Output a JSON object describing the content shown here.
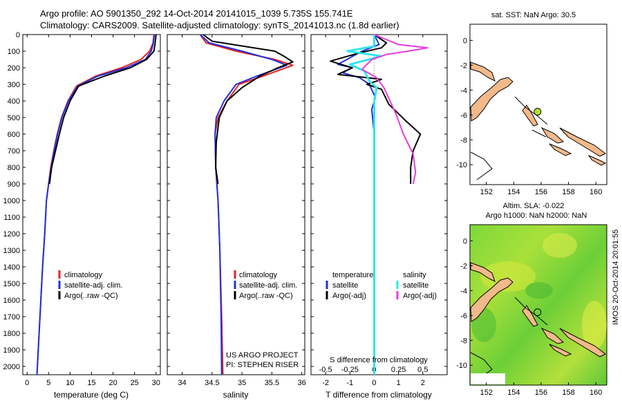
{
  "header": {
    "line1": "Argo profile: AO 5901350_292 14-Oct-2014 20141015_1039 5.735S 155.741E",
    "line2": "Climatology: CARS2009. Satellite-adjusted climatology: synTS_20141013.nc (1.8d earlier)"
  },
  "side_text": "IMOS 20-Oct-2014 20:01:55",
  "colors": {
    "clim": "#e8211d",
    "sat": "#1f2fe0",
    "argo": "#000000",
    "sal_sat": "#2ee6ee",
    "sal_argo": "#e83ae0",
    "land": "#f2b98a",
    "argo_dot": "#b8e02a"
  },
  "chart_data": [
    {
      "type": "line",
      "id": "temperature",
      "xlabel": "temperature (deg C)",
      "xlim": [
        -1,
        31
      ],
      "ylim": [
        0,
        2050
      ],
      "xticks": [
        0,
        5,
        10,
        15,
        20,
        25,
        30
      ],
      "yticks": [
        0,
        100,
        200,
        300,
        400,
        500,
        600,
        700,
        800,
        900,
        1000,
        1100,
        1200,
        1300,
        1400,
        1500,
        1600,
        1700,
        1800,
        1900,
        2000
      ],
      "legend": [
        "climatology",
        "satellite-adj. clim.",
        "Argo(..raw -QC)"
      ],
      "series": [
        {
          "name": "climatology",
          "points": [
            [
              29.5,
              0
            ],
            [
              29.3,
              50
            ],
            [
              28.5,
              100
            ],
            [
              26.5,
              150
            ],
            [
              22,
              200
            ],
            [
              16,
              250
            ],
            [
              11.5,
              310
            ],
            [
              9.5,
              400
            ],
            [
              8,
              500
            ],
            [
              7,
              600
            ],
            [
              6.2,
              700
            ],
            [
              5.5,
              800
            ],
            [
              5,
              900
            ],
            [
              4.5,
              1000
            ],
            [
              4.1,
              1200
            ],
            [
              3.6,
              1400
            ],
            [
              3.2,
              1600
            ],
            [
              2.8,
              1800
            ],
            [
              2.4,
              2000
            ],
            [
              2.3,
              2050
            ]
          ]
        },
        {
          "name": "satellite-adj. clim.",
          "points": [
            [
              29.6,
              0
            ],
            [
              29.4,
              50
            ],
            [
              28.9,
              100
            ],
            [
              27.5,
              150
            ],
            [
              23,
              200
            ],
            [
              16.5,
              250
            ],
            [
              11.8,
              310
            ],
            [
              9.6,
              400
            ],
            [
              8.1,
              500
            ],
            [
              7.1,
              600
            ],
            [
              6.3,
              700
            ],
            [
              5.6,
              800
            ],
            [
              5,
              900
            ],
            [
              4.5,
              1000
            ],
            [
              4.1,
              1200
            ],
            [
              3.6,
              1400
            ],
            [
              3.2,
              1600
            ],
            [
              2.8,
              1800
            ],
            [
              2.4,
              2000
            ],
            [
              2.3,
              2050
            ]
          ]
        },
        {
          "name": "Argo(..raw -QC)",
          "points": [
            [
              30,
              0
            ],
            [
              29.8,
              50
            ],
            [
              29.5,
              100
            ],
            [
              27.8,
              150
            ],
            [
              24,
              200
            ],
            [
              18,
              250
            ],
            [
              12,
              310
            ],
            [
              10,
              400
            ],
            [
              8.5,
              500
            ],
            [
              7.5,
              600
            ],
            [
              6.6,
              700
            ],
            [
              5.7,
              800
            ],
            [
              5.2,
              900
            ]
          ]
        }
      ]
    },
    {
      "type": "line",
      "id": "salinity",
      "xlabel": "salinity",
      "xlim": [
        33.75,
        36.05
      ],
      "ylim": [
        0,
        2050
      ],
      "xticks": [
        34,
        34.5,
        35,
        35.5,
        36
      ],
      "legend": [
        "climatology",
        "satellite-adj. clim.",
        "Argo(..raw -QC)"
      ],
      "annotation": [
        "US ARGO PROJECT",
        "PI: STEPHEN RISER"
      ],
      "series": [
        {
          "name": "climatology",
          "points": [
            [
              34.3,
              0
            ],
            [
              34.4,
              50
            ],
            [
              34.9,
              100
            ],
            [
              35.55,
              150
            ],
            [
              35.85,
              185
            ],
            [
              35.35,
              250
            ],
            [
              34.95,
              300
            ],
            [
              34.75,
              400
            ],
            [
              34.6,
              500
            ],
            [
              34.55,
              600
            ],
            [
              34.56,
              800
            ],
            [
              34.6,
              1000
            ],
            [
              34.63,
              1300
            ],
            [
              34.66,
              1700
            ],
            [
              34.68,
              2050
            ]
          ]
        },
        {
          "name": "satellite-adj. clim.",
          "points": [
            [
              34.3,
              0
            ],
            [
              34.45,
              50
            ],
            [
              35,
              100
            ],
            [
              35.5,
              150
            ],
            [
              35.75,
              185
            ],
            [
              35.25,
              250
            ],
            [
              34.9,
              300
            ],
            [
              34.7,
              400
            ],
            [
              34.57,
              500
            ],
            [
              34.55,
              600
            ],
            [
              34.56,
              800
            ],
            [
              34.6,
              1000
            ],
            [
              34.63,
              1300
            ],
            [
              34.65,
              1700
            ],
            [
              34.66,
              2050
            ]
          ]
        },
        {
          "name": "Argo(..raw -QC)",
          "points": [
            [
              34.35,
              0
            ],
            [
              34.5,
              40
            ],
            [
              35.2,
              80
            ],
            [
              35.55,
              100
            ],
            [
              35.7,
              130
            ],
            [
              35.85,
              165
            ],
            [
              35.6,
              200
            ],
            [
              35.3,
              250
            ],
            [
              35,
              320
            ],
            [
              34.75,
              400
            ],
            [
              34.62,
              500
            ],
            [
              34.57,
              650
            ],
            [
              34.56,
              800
            ],
            [
              34.6,
              900
            ]
          ]
        }
      ]
    },
    {
      "type": "line",
      "id": "differences",
      "xlabel": "T difference from climatology",
      "xlabel2": "S difference from climatology",
      "xlim": [
        -2.6,
        3
      ],
      "ylim": [
        0,
        2050
      ],
      "xticks": [
        -2,
        -1,
        0,
        1,
        2
      ],
      "xticks2": [
        -0.5,
        -0.25,
        0,
        0.25,
        0.5
      ],
      "legend_headers": [
        "temperature",
        "salinity"
      ],
      "legend": [
        "satellite",
        "Argo(-adj)",
        "satellite",
        "Argo(-adj)"
      ],
      "series": [
        {
          "name": "satellite",
          "points": [
            [
              0,
              0
            ],
            [
              0.2,
              60
            ],
            [
              -0.5,
              100
            ],
            [
              -1.5,
              180
            ],
            [
              -0.9,
              200
            ],
            [
              -1.3,
              230
            ],
            [
              -0.6,
              260
            ],
            [
              -0.2,
              300
            ],
            [
              0.05,
              380
            ],
            [
              -0.1,
              450
            ],
            [
              0,
              600
            ],
            [
              0,
              1000
            ],
            [
              0,
              1500
            ],
            [
              0,
              2050
            ]
          ]
        },
        {
          "name": "Argo(-adj)",
          "points": [
            [
              0,
              0
            ],
            [
              0.5,
              50
            ],
            [
              0.3,
              80
            ],
            [
              -0.6,
              110
            ],
            [
              -1.8,
              160
            ],
            [
              -0.9,
              200
            ],
            [
              -1.5,
              240
            ],
            [
              0.3,
              270
            ],
            [
              -0.3,
              300
            ],
            [
              0.3,
              330
            ],
            [
              0.6,
              420
            ],
            [
              1.3,
              520
            ],
            [
              1.9,
              600
            ],
            [
              1.6,
              700
            ],
            [
              1.5,
              800
            ],
            [
              1.5,
              900
            ]
          ]
        },
        {
          "name": "satellite",
          "points": [
            [
              0,
              0
            ],
            [
              0,
              70
            ],
            [
              -1.1,
              100
            ],
            [
              0.3,
              130
            ],
            [
              -1,
              180
            ],
            [
              -0.4,
              220
            ],
            [
              -0.2,
              280
            ],
            [
              0.1,
              320
            ],
            [
              0,
              400
            ],
            [
              0,
              600
            ],
            [
              0,
              1000
            ],
            [
              0,
              1500
            ],
            [
              0,
              2050
            ]
          ]
        },
        {
          "name": "Argo(-adj)",
          "points": [
            [
              0,
              0
            ],
            [
              1,
              60
            ],
            [
              2.2,
              80
            ],
            [
              1.4,
              100
            ],
            [
              0.5,
              120
            ],
            [
              -0.1,
              150
            ],
            [
              -0.5,
              210
            ],
            [
              0.1,
              260
            ],
            [
              0.4,
              320
            ],
            [
              0.9,
              480
            ],
            [
              1.2,
              600
            ],
            [
              1.6,
              720
            ],
            [
              1.7,
              830
            ],
            [
              1.6,
              900
            ]
          ]
        }
      ]
    },
    {
      "type": "scatter",
      "id": "sst_map",
      "title": "sat. SST: NaN Argo: 30.5",
      "xlim": [
        150.8,
        160.8
      ],
      "ylim": [
        -11.6,
        1.3
      ],
      "xticks": [
        152,
        154,
        156,
        158,
        160
      ],
      "yticks": [
        -10,
        -8,
        -6,
        -4,
        -2,
        0
      ],
      "points": [
        [
          155.74,
          -5.74
        ]
      ]
    },
    {
      "type": "heatmap",
      "id": "sla_map",
      "title": "Altim. SLA: -0.022",
      "title2": "Argo h1000: NaN h2000: NaN",
      "xlim": [
        150.8,
        160.8
      ],
      "ylim": [
        -11.6,
        1.3
      ],
      "xticks": [
        152,
        154,
        156,
        158,
        160
      ],
      "yticks": [
        -10,
        -8,
        -6,
        -4,
        -2,
        0
      ],
      "points": [
        [
          155.74,
          -5.74
        ]
      ]
    }
  ]
}
